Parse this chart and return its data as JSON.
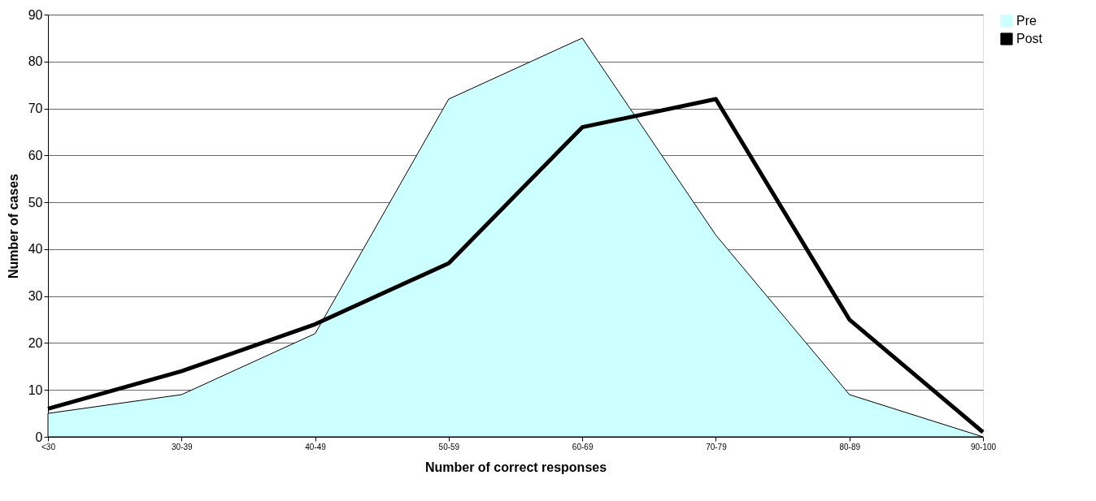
{
  "chart_data": {
    "type": "line",
    "xlabel": "Number of correct responses",
    "ylabel": "Number of cases",
    "categories": [
      "<30",
      "30-39",
      "40-49",
      "50-59",
      "60-69",
      "70-79",
      "80-89",
      "90-100"
    ],
    "series": [
      {
        "name": "Pre",
        "type": "area",
        "color": "#ccffff",
        "values": [
          5,
          9,
          22,
          72,
          85,
          43,
          9,
          0
        ]
      },
      {
        "name": "Post",
        "color": "#000000",
        "values": [
          6,
          14,
          24,
          37,
          66,
          72,
          25,
          1
        ]
      }
    ],
    "ylim": [
      0,
      90
    ],
    "yticks": [
      0,
      10,
      20,
      30,
      40,
      50,
      60,
      70,
      80,
      90
    ],
    "grid": "y",
    "legend": "right",
    "marker": "none",
    "line_style": "solid"
  }
}
